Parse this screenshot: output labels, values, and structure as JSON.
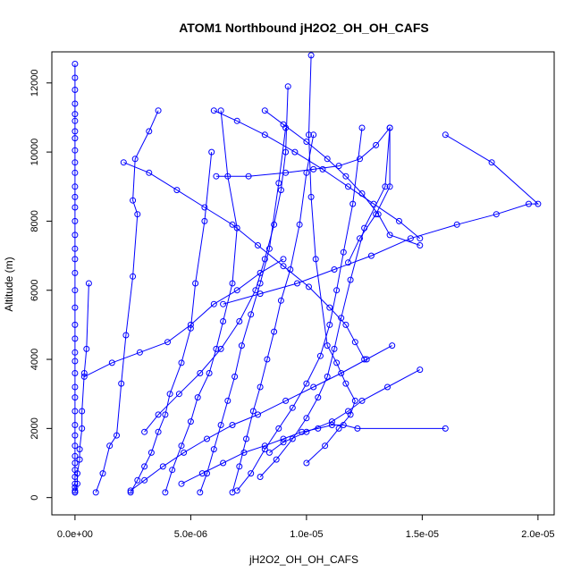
{
  "chart_data": {
    "type": "scatter",
    "title": "ATOM1 Northbound jH2O2_OH_OH_CAFS",
    "xlabel": "jH2O2_OH_OH_CAFS",
    "ylabel": "Altitude (m)",
    "xlim": [
      -1e-06,
      2.07e-05
    ],
    "ylim": [
      -500,
      12900
    ],
    "x_ticks": [
      0,
      5e-06,
      1e-05,
      1.5e-05,
      2e-05
    ],
    "x_tick_labels": [
      "0.0e+00",
      "5.0e-06",
      "1.0e-05",
      "1.5e-05",
      "2.0e-05"
    ],
    "y_ticks": [
      0,
      2000,
      4000,
      6000,
      8000,
      10000,
      12000
    ],
    "y_tick_labels": [
      "0",
      "2000",
      "4000",
      "6000",
      "8000",
      "10000",
      "12000"
    ],
    "grid": false,
    "legend": "none",
    "marker": "open-circle",
    "color": "#0000ff",
    "series": [
      {
        "x": [
          0.0,
          0.0,
          0.0,
          0.0,
          0.0,
          0.0,
          0.0,
          0.0,
          0.0,
          0.0,
          0.0,
          0.0,
          0.0,
          0.0,
          0.0,
          0.0,
          0.0,
          0.0,
          0.0,
          0.0,
          0.0,
          0.0,
          0.0,
          0.0,
          0.0,
          0.0,
          0.0,
          0.0,
          0.0,
          0.0,
          0.0,
          0.0,
          0.0,
          0.0,
          0.0,
          0.0,
          0.0,
          0.0,
          0.0,
          0.0
        ],
        "y": [
          12550,
          12150,
          11800,
          11400,
          11100,
          10900,
          10600,
          10400,
          10050,
          9700,
          9400,
          9000,
          8700,
          8400,
          8000,
          7600,
          7200,
          6900,
          6500,
          6000,
          5500,
          5000,
          4600,
          4200,
          3950,
          3600,
          3200,
          2900,
          2500,
          2100,
          1800,
          1500,
          1200,
          1000,
          800,
          600,
          400,
          300,
          200,
          150
        ]
      },
      {
        "x": [
          0.0,
          1e-07,
          1e-07,
          2e-07,
          2e-07,
          3e-07,
          3e-07,
          4e-07,
          5e-07,
          6e-07
        ],
        "y": [
          150,
          400,
          700,
          1100,
          1400,
          2000,
          2500,
          3600,
          4300,
          6200
        ]
      },
      {
        "x": [
          9e-07,
          1.2e-06,
          1.5e-06,
          1.8e-06,
          2e-06,
          2.2e-06,
          2.5e-06,
          2.7e-06,
          2.5e-06,
          2.6e-06,
          3.2e-06,
          3.6e-06
        ],
        "y": [
          150,
          700,
          1500,
          1800,
          3300,
          4700,
          6400,
          8200,
          8600,
          9800,
          10600,
          11200
        ]
      },
      {
        "x": [
          2.4e-06,
          2.7e-06,
          3e-06,
          3.3e-06,
          3.6e-06,
          3.9e-06,
          4.1e-06,
          4.6e-06,
          5e-06,
          5.2e-06,
          5.6e-06,
          5.9e-06
        ],
        "y": [
          150,
          500,
          900,
          1300,
          1900,
          2400,
          3000,
          3900,
          4900,
          6200,
          8000,
          10000
        ]
      },
      {
        "x": [
          3.9e-06,
          4.2e-06,
          4.6e-06,
          5e-06,
          5.3e-06,
          5.8e-06,
          6.1e-06,
          6.4e-06,
          6.8e-06,
          7e-06,
          6.6e-06,
          6.3e-06
        ],
        "y": [
          150,
          800,
          1500,
          2200,
          2900,
          3600,
          4300,
          5100,
          6200,
          7800,
          9300,
          11200
        ]
      },
      {
        "x": [
          5.4e-06,
          5.7e-06,
          6e-06,
          6.3e-06,
          6.6e-06,
          6.9e-06,
          7.2e-06,
          7.6e-06,
          8e-06,
          8.4e-06,
          8.8e-06,
          9.1e-06
        ],
        "y": [
          150,
          700,
          1400,
          2100,
          2800,
          3500,
          4400,
          5300,
          6200,
          7200,
          9100,
          10700
        ]
      },
      {
        "x": [
          6.8e-06,
          7.1e-06,
          7.4e-06,
          7.7e-06,
          8e-06,
          8.3e-06,
          8.6e-06,
          8.9e-06,
          9.3e-06,
          9.7e-06,
          1e-05,
          1.03e-05
        ],
        "y": [
          150,
          900,
          1700,
          2500,
          3200,
          4000,
          4800,
          5700,
          6600,
          7900,
          9400,
          10500
        ]
      },
      {
        "x": [
          7e-06,
          7.6e-06,
          8.2e-06,
          8.8e-06,
          9.4e-06,
          1e-05,
          1.06e-05,
          1.1e-05,
          1.13e-05,
          1.16e-05,
          1.2e-05,
          1.24e-05
        ],
        "y": [
          200,
          700,
          1400,
          2000,
          2600,
          3300,
          4100,
          5000,
          6000,
          7100,
          8500,
          10700
        ]
      },
      {
        "x": [
          8e-06,
          8.7e-06,
          9.4e-06,
          1e-05,
          1.05e-05,
          1.09e-05,
          1.12e-05,
          1.15e-05,
          1.19e-05,
          1.25e-05,
          1.34e-05,
          1.36e-05
        ],
        "y": [
          600,
          1100,
          1700,
          2300,
          2900,
          3500,
          4300,
          5200,
          6300,
          7800,
          9000,
          10700
        ]
      },
      {
        "x": [
          1e-05,
          1.08e-05,
          1.14e-05,
          1.19e-05,
          1.21e-05,
          1.17e-05,
          1.13e-05,
          1.09e-05,
          1.04e-05,
          1.02e-05,
          1.01e-05,
          1.02e-05
        ],
        "y": [
          1000,
          1500,
          2000,
          2400,
          2800,
          3300,
          3900,
          4400,
          6900,
          8700,
          10500,
          12800
        ]
      },
      {
        "x": [
          2.4e-06,
          3e-06,
          3.8e-06,
          4.7e-06,
          5.7e-06,
          6.8e-06,
          7.9e-06,
          9.1e-06,
          1.03e-05,
          1.15e-05,
          1.26e-05,
          1.37e-05
        ],
        "y": [
          200,
          500,
          900,
          1300,
          1700,
          2100,
          2400,
          2800,
          3200,
          3600,
          4000,
          4400
        ]
      },
      {
        "x": [
          8.4e-06,
          9e-06,
          1e-05,
          1.11e-05,
          1.18e-05,
          1.24e-05,
          1.35e-05,
          1.49e-05
        ],
        "y": [
          1300,
          1600,
          1900,
          2200,
          2500,
          2800,
          3200,
          3700
        ]
      },
      {
        "x": [
          4e-07,
          1.6e-06,
          2.8e-06,
          4e-06,
          5e-06,
          6e-06,
          7e-06,
          8e-06,
          9e-06
        ],
        "y": [
          3500,
          3900,
          4200,
          4500,
          5000,
          5600,
          6000,
          6500,
          6900
        ]
      },
      {
        "x": [
          6.4e-06,
          8e-06,
          9.6e-06,
          1.12e-05,
          1.28e-05,
          1.45e-05,
          1.65e-05,
          1.82e-05,
          1.96e-05,
          2e-05,
          1.8e-05,
          1.6e-05
        ],
        "y": [
          5600,
          5900,
          6200,
          6600,
          7000,
          7500,
          7900,
          8200,
          8500,
          8500,
          9700,
          10500
        ]
      },
      {
        "x": [
          6.1e-06,
          7.5e-06,
          9.1e-06,
          1.03e-05,
          1.14e-05,
          1.23e-05,
          1.3e-05,
          1.36e-05,
          1.36e-05,
          1.3e-05,
          1.23e-05,
          1.18e-05
        ],
        "y": [
          9300,
          9300,
          9400,
          9500,
          9600,
          9800,
          10200,
          10700,
          9000,
          8200,
          7500,
          6800
        ]
      },
      {
        "x": [
          2.1e-06,
          3.2e-06,
          4.4e-06,
          5.6e-06,
          6.8e-06,
          7.9e-06,
          9e-06,
          1.01e-05,
          1.1e-05,
          1.17e-05,
          1.21e-05,
          1.25e-05
        ],
        "y": [
          9700,
          9400,
          8900,
          8400,
          7900,
          7300,
          6700,
          6100,
          5500,
          5000,
          4500,
          4000
        ]
      },
      {
        "x": [
          6e-06,
          7e-06,
          8.2e-06,
          9.5e-06,
          1.07e-05,
          1.18e-05,
          1.29e-05,
          1.4e-05,
          1.49e-05
        ],
        "y": [
          11200,
          10900,
          10500,
          10000,
          9500,
          9000,
          8500,
          8000,
          7500
        ]
      },
      {
        "x": [
          8.2e-06,
          9e-06,
          1e-05,
          1.09e-05,
          1.17e-05,
          1.24e-05,
          1.31e-05,
          1.36e-05,
          1.49e-05
        ],
        "y": [
          11200,
          10800,
          10300,
          9800,
          9300,
          8800,
          8200,
          7600,
          7300
        ]
      },
      {
        "x": [
          3e-06,
          3.6e-06,
          4.5e-06,
          5.4e-06,
          6.3e-06,
          7.1e-06,
          7.8e-06,
          8.2e-06,
          8.6e-06,
          8.9e-06,
          9.1e-06,
          9.2e-06
        ],
        "y": [
          1900,
          2400,
          3000,
          3600,
          4300,
          5100,
          6000,
          6900,
          7900,
          8900,
          10000,
          11900
        ]
      },
      {
        "x": [
          4.6e-06,
          5.5e-06,
          6.4e-06,
          7.3e-06,
          8.2e-06,
          9e-06,
          9.8e-06,
          1.05e-05,
          1.11e-05,
          1.16e-05,
          1.22e-05,
          1.6e-05
        ],
        "y": [
          400,
          700,
          1000,
          1300,
          1500,
          1700,
          1900,
          2000,
          2100,
          2100,
          2000,
          2000
        ]
      }
    ]
  }
}
